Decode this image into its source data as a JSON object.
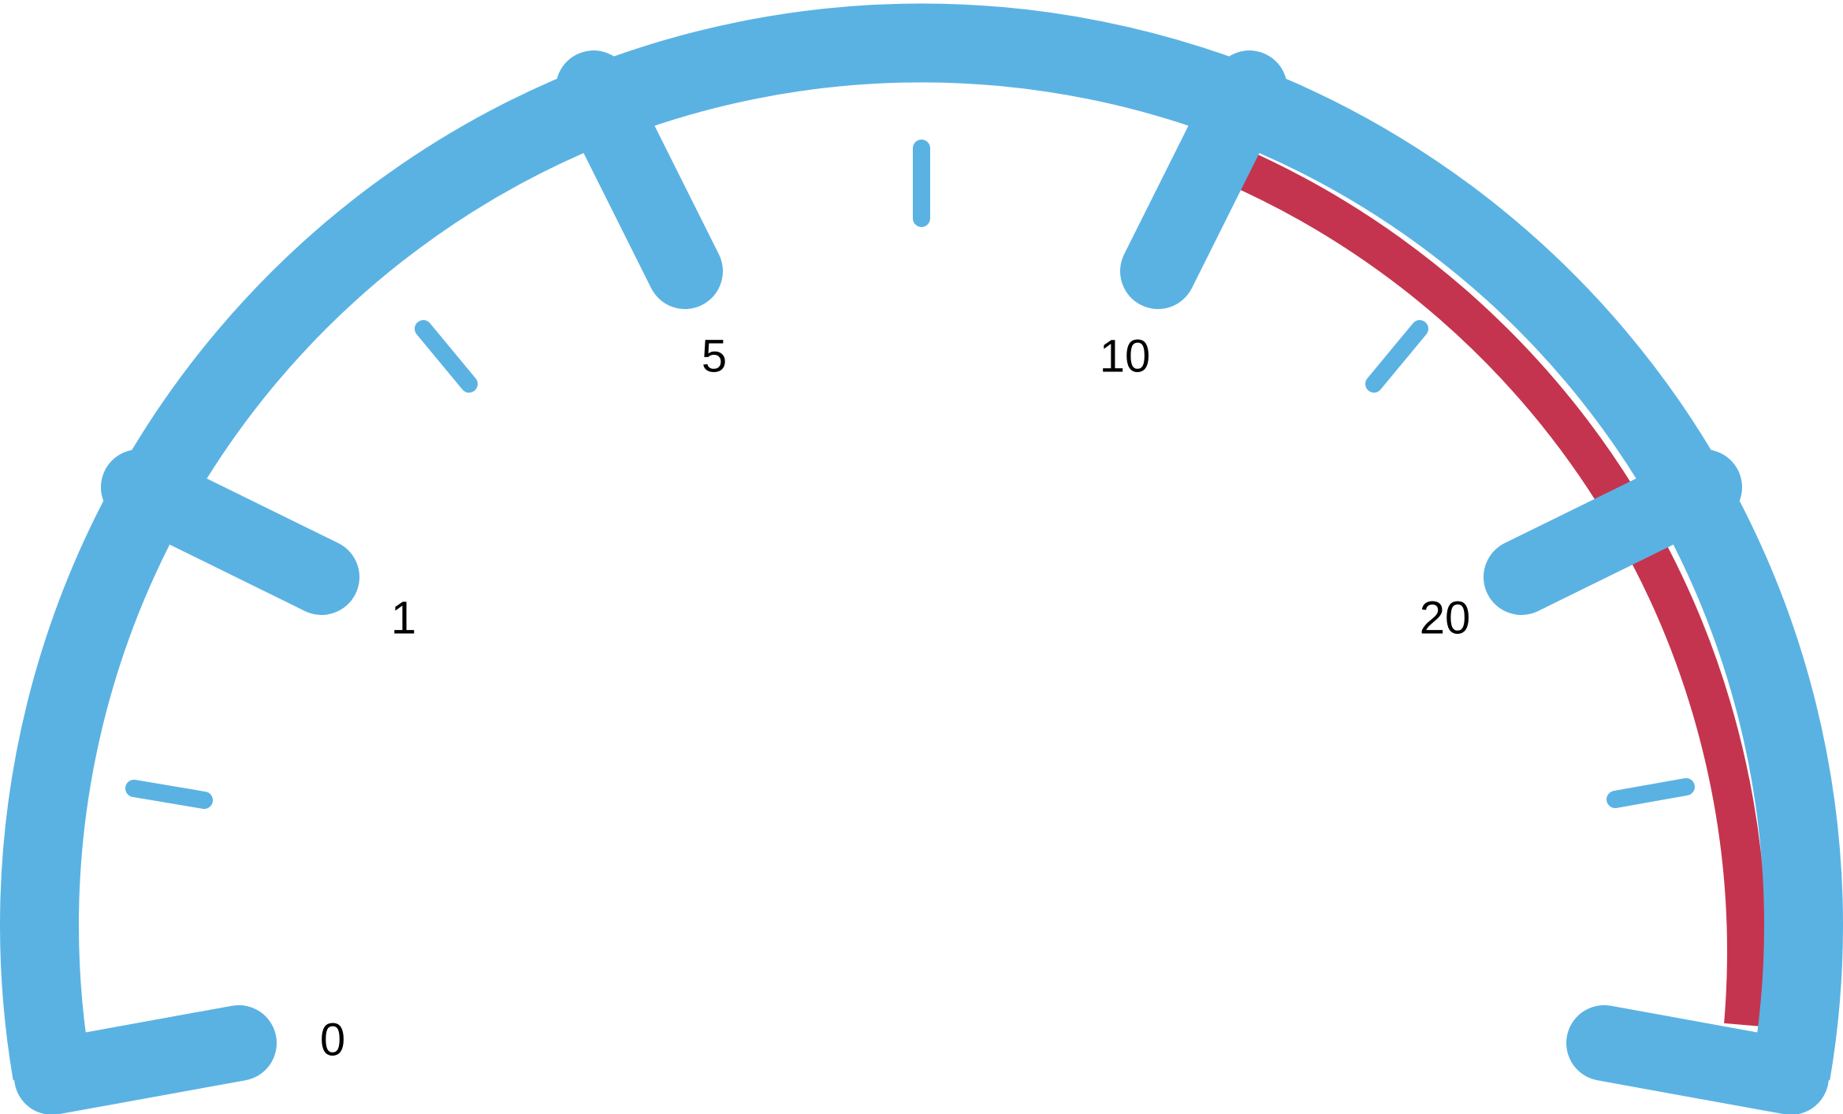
{
  "gauge": {
    "scale_labels": [
      {
        "id": "0",
        "text": "0"
      },
      {
        "id": "1",
        "text": "1"
      },
      {
        "id": "5",
        "text": "5"
      },
      {
        "id": "10",
        "text": "10"
      },
      {
        "id": "20",
        "text": "20"
      }
    ],
    "colors": {
      "dial": "#5AB2E3",
      "red_zone": "#C5344E",
      "label": "#000000",
      "background": "#ffffff"
    }
  }
}
